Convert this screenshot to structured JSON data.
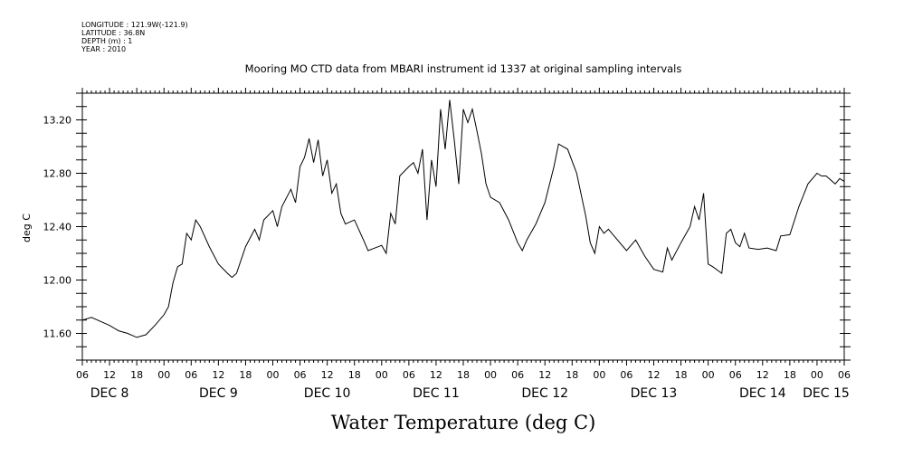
{
  "meta_lines": [
    "LONGITUDE : 121.9W(-121.9)",
    "LATITUDE : 36.8N",
    "DEPTH (m) : 1",
    "YEAR : 2010"
  ],
  "colors": {
    "line": "#000000",
    "background": "#ffffff"
  },
  "chart_data": {
    "type": "line",
    "title": "Mooring MO CTD data from MBARI instrument id 1337 at original sampling intervals",
    "xlabel": "Water Temperature (deg C)",
    "ylabel": "deg C",
    "ylim": [
      11.4,
      13.4
    ],
    "y_ticks": [
      "11.60",
      "12.00",
      "12.40",
      "12.80",
      "13.20"
    ],
    "y_tick_values": [
      11.6,
      12.0,
      12.4,
      12.8,
      13.2
    ],
    "xlim": [
      "2010-12-08T06:00",
      "2010-12-15T06:00"
    ],
    "x_hour_ticks": [
      "06",
      "12",
      "18",
      "00",
      "06",
      "12",
      "18",
      "00",
      "06",
      "12",
      "18",
      "00",
      "06",
      "12",
      "18",
      "00",
      "06",
      "12",
      "18",
      "00",
      "06",
      "12",
      "18",
      "00",
      "06",
      "12",
      "18",
      "00",
      "06"
    ],
    "x_day_labels": [
      {
        "label": "DEC  8",
        "date": "2010-12-08"
      },
      {
        "label": "DEC  9",
        "date": "2010-12-09"
      },
      {
        "label": "DEC 10",
        "date": "2010-12-10"
      },
      {
        "label": "DEC 11",
        "date": "2010-12-11"
      },
      {
        "label": "DEC 12",
        "date": "2010-12-12"
      },
      {
        "label": "DEC 13",
        "date": "2010-12-13"
      },
      {
        "label": "DEC 14",
        "date": "2010-12-14"
      },
      {
        "label": "DEC 15",
        "date": "2010-12-15"
      }
    ],
    "series": [
      {
        "points": [
          [
            "2010-12-08T06:00",
            11.7
          ],
          [
            "2010-12-08T08:00",
            11.72
          ],
          [
            "2010-12-08T10:00",
            11.69
          ],
          [
            "2010-12-08T12:00",
            11.66
          ],
          [
            "2010-12-08T14:00",
            11.62
          ],
          [
            "2010-12-08T16:00",
            11.6
          ],
          [
            "2010-12-08T18:00",
            11.57
          ],
          [
            "2010-12-08T20:00",
            11.59
          ],
          [
            "2010-12-08T22:00",
            11.66
          ],
          [
            "2010-12-09T00:00",
            11.74
          ],
          [
            "2010-12-09T01:00",
            11.8
          ],
          [
            "2010-12-09T02:00",
            11.98
          ],
          [
            "2010-12-09T03:00",
            12.1
          ],
          [
            "2010-12-09T04:00",
            12.12
          ],
          [
            "2010-12-09T05:00",
            12.35
          ],
          [
            "2010-12-09T06:00",
            12.3
          ],
          [
            "2010-12-09T07:00",
            12.45
          ],
          [
            "2010-12-09T08:00",
            12.4
          ],
          [
            "2010-12-09T10:00",
            12.25
          ],
          [
            "2010-12-09T12:00",
            12.12
          ],
          [
            "2010-12-09T14:00",
            12.05
          ],
          [
            "2010-12-09T15:00",
            12.02
          ],
          [
            "2010-12-09T16:00",
            12.05
          ],
          [
            "2010-12-09T18:00",
            12.25
          ],
          [
            "2010-12-09T20:00",
            12.38
          ],
          [
            "2010-12-09T21:00",
            12.3
          ],
          [
            "2010-12-09T22:00",
            12.45
          ],
          [
            "2010-12-10T00:00",
            12.52
          ],
          [
            "2010-12-10T01:00",
            12.4
          ],
          [
            "2010-12-10T02:00",
            12.55
          ],
          [
            "2010-12-10T04:00",
            12.68
          ],
          [
            "2010-12-10T05:00",
            12.58
          ],
          [
            "2010-12-10T06:00",
            12.85
          ],
          [
            "2010-12-10T07:00",
            12.92
          ],
          [
            "2010-12-10T08:00",
            13.06
          ],
          [
            "2010-12-10T09:00",
            12.88
          ],
          [
            "2010-12-10T10:00",
            13.05
          ],
          [
            "2010-12-10T11:00",
            12.78
          ],
          [
            "2010-12-10T12:00",
            12.9
          ],
          [
            "2010-12-10T13:00",
            12.65
          ],
          [
            "2010-12-10T14:00",
            12.72
          ],
          [
            "2010-12-10T15:00",
            12.5
          ],
          [
            "2010-12-10T16:00",
            12.42
          ],
          [
            "2010-12-10T18:00",
            12.45
          ],
          [
            "2010-12-10T20:00",
            12.3
          ],
          [
            "2010-12-10T21:00",
            12.22
          ],
          [
            "2010-12-11T00:00",
            12.26
          ],
          [
            "2010-12-11T01:00",
            12.2
          ],
          [
            "2010-12-11T02:00",
            12.5
          ],
          [
            "2010-12-11T03:00",
            12.42
          ],
          [
            "2010-12-11T04:00",
            12.78
          ],
          [
            "2010-12-11T06:00",
            12.85
          ],
          [
            "2010-12-11T07:00",
            12.88
          ],
          [
            "2010-12-11T08:00",
            12.8
          ],
          [
            "2010-12-11T09:00",
            12.98
          ],
          [
            "2010-12-11T10:00",
            12.45
          ],
          [
            "2010-12-11T11:00",
            12.9
          ],
          [
            "2010-12-11T12:00",
            12.7
          ],
          [
            "2010-12-11T13:00",
            13.28
          ],
          [
            "2010-12-11T14:00",
            12.98
          ],
          [
            "2010-12-11T15:00",
            13.35
          ],
          [
            "2010-12-11T16:00",
            13.05
          ],
          [
            "2010-12-11T17:00",
            12.72
          ],
          [
            "2010-12-11T18:00",
            13.28
          ],
          [
            "2010-12-11T19:00",
            13.18
          ],
          [
            "2010-12-11T20:00",
            13.28
          ],
          [
            "2010-12-11T21:00",
            13.12
          ],
          [
            "2010-12-11T22:00",
            12.95
          ],
          [
            "2010-12-11T23:00",
            12.72
          ],
          [
            "2010-12-12T00:00",
            12.62
          ],
          [
            "2010-12-12T02:00",
            12.58
          ],
          [
            "2010-12-12T04:00",
            12.45
          ],
          [
            "2010-12-12T06:00",
            12.28
          ],
          [
            "2010-12-12T07:00",
            12.22
          ],
          [
            "2010-12-12T08:00",
            12.3
          ],
          [
            "2010-12-12T10:00",
            12.42
          ],
          [
            "2010-12-12T12:00",
            12.58
          ],
          [
            "2010-12-12T14:00",
            12.85
          ],
          [
            "2010-12-12T15:00",
            13.02
          ],
          [
            "2010-12-12T17:00",
            12.98
          ],
          [
            "2010-12-12T19:00",
            12.8
          ],
          [
            "2010-12-12T21:00",
            12.48
          ],
          [
            "2010-12-12T22:00",
            12.28
          ],
          [
            "2010-12-12T23:00",
            12.2
          ],
          [
            "2010-12-13T00:00",
            12.4
          ],
          [
            "2010-12-13T01:00",
            12.35
          ],
          [
            "2010-12-13T02:00",
            12.38
          ],
          [
            "2010-12-13T04:00",
            12.3
          ],
          [
            "2010-12-13T06:00",
            12.22
          ],
          [
            "2010-12-13T08:00",
            12.3
          ],
          [
            "2010-12-13T10:00",
            12.18
          ],
          [
            "2010-12-13T12:00",
            12.08
          ],
          [
            "2010-12-13T14:00",
            12.06
          ],
          [
            "2010-12-13T15:00",
            12.24
          ],
          [
            "2010-12-13T16:00",
            12.15
          ],
          [
            "2010-12-13T18:00",
            12.28
          ],
          [
            "2010-12-13T20:00",
            12.4
          ],
          [
            "2010-12-13T21:00",
            12.55
          ],
          [
            "2010-12-13T22:00",
            12.45
          ],
          [
            "2010-12-13T23:00",
            12.65
          ],
          [
            "2010-12-14T00:00",
            12.12
          ],
          [
            "2010-12-14T01:00",
            12.1
          ],
          [
            "2010-12-14T03:00",
            12.05
          ],
          [
            "2010-12-14T04:00",
            12.35
          ],
          [
            "2010-12-14T05:00",
            12.38
          ],
          [
            "2010-12-14T06:00",
            12.28
          ],
          [
            "2010-12-14T07:00",
            12.25
          ],
          [
            "2010-12-14T08:00",
            12.35
          ],
          [
            "2010-12-14T09:00",
            12.24
          ],
          [
            "2010-12-14T11:00",
            12.23
          ],
          [
            "2010-12-14T13:00",
            12.24
          ],
          [
            "2010-12-14T15:00",
            12.22
          ],
          [
            "2010-12-14T16:00",
            12.33
          ],
          [
            "2010-12-14T18:00",
            12.34
          ],
          [
            "2010-12-14T20:00",
            12.55
          ],
          [
            "2010-12-14T22:00",
            12.72
          ],
          [
            "2010-12-15T00:00",
            12.8
          ],
          [
            "2010-12-15T01:00",
            12.78
          ],
          [
            "2010-12-15T02:00",
            12.78
          ],
          [
            "2010-12-15T04:00",
            12.72
          ],
          [
            "2010-12-15T05:00",
            12.76
          ],
          [
            "2010-12-15T06:00",
            12.74
          ]
        ]
      }
    ]
  }
}
